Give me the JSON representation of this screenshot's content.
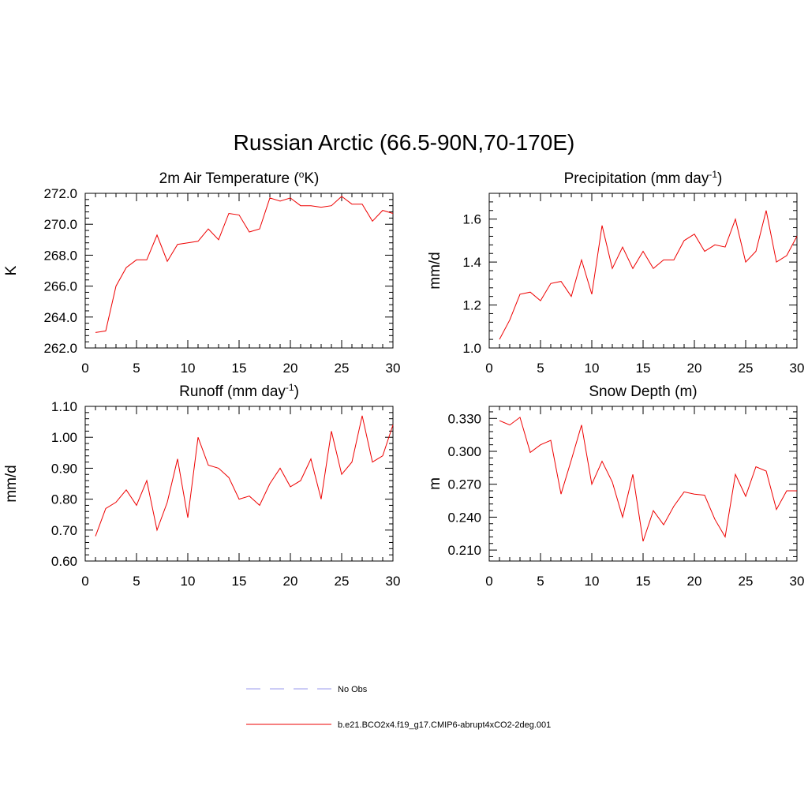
{
  "title": "Russian Arctic (66.5-90N,70-170E)",
  "legend": [
    {
      "label": "No Obs",
      "color": "#9999ee",
      "dash": true
    },
    {
      "label": "b.e21.BCO2x4.f19_g17.CMIP6-abrupt4xCO2-2deg.001",
      "color": "#ee0000",
      "dash": false
    }
  ],
  "chart_data": [
    {
      "type": "line",
      "title": "2m Air Temperature (oK)",
      "title_main": "2m Air Temperature (",
      "title_sup": "o",
      "title_end": "K)",
      "xlabel": "",
      "ylabel": "K",
      "xlim": [
        0,
        30
      ],
      "ylim": [
        262,
        272
      ],
      "xticks": [
        0,
        5,
        10,
        15,
        20,
        25,
        30
      ],
      "yticks": [
        262,
        264,
        266,
        268,
        270,
        272
      ],
      "yticklabels": [
        "262.0",
        "264.0",
        "266.0",
        "268.0",
        "270.0",
        "272.0"
      ],
      "series": [
        {
          "name": "b.e21.BCO2x4.f19_g17.CMIP6-abrupt4xCO2-2deg.001",
          "color": "#ee0000",
          "x": [
            1,
            2,
            3,
            4,
            5,
            6,
            7,
            8,
            9,
            10,
            11,
            12,
            13,
            14,
            15,
            16,
            17,
            18,
            19,
            20,
            21,
            22,
            23,
            24,
            25,
            26,
            27,
            28,
            29,
            30
          ],
          "values": [
            263.0,
            263.1,
            266.0,
            267.2,
            267.7,
            267.7,
            269.3,
            267.6,
            268.7,
            268.8,
            268.9,
            269.7,
            269.0,
            270.7,
            270.6,
            269.5,
            269.7,
            271.7,
            271.5,
            271.7,
            271.2,
            271.2,
            271.1,
            271.2,
            271.8,
            271.3,
            271.3,
            270.2,
            270.9,
            270.7
          ]
        }
      ]
    },
    {
      "type": "line",
      "title": "Precipitation (mm day-1)",
      "title_main": "Precipitation (mm day",
      "title_sup": "-1",
      "title_end": ")",
      "xlabel": "",
      "ylabel": "mm/d",
      "xlim": [
        0,
        30
      ],
      "ylim": [
        1.0,
        1.72
      ],
      "xticks": [
        0,
        5,
        10,
        15,
        20,
        25,
        30
      ],
      "yticks": [
        1.0,
        1.2,
        1.4,
        1.6
      ],
      "yticklabels": [
        "1.0",
        "1.2",
        "1.4",
        "1.6"
      ],
      "series": [
        {
          "name": "b.e21.BCO2x4.f19_g17.CMIP6-abrupt4xCO2-2deg.001",
          "color": "#ee0000",
          "x": [
            1,
            2,
            3,
            4,
            5,
            6,
            7,
            8,
            9,
            10,
            11,
            12,
            13,
            14,
            15,
            16,
            17,
            18,
            19,
            20,
            21,
            22,
            23,
            24,
            25,
            26,
            27,
            28,
            29,
            30
          ],
          "values": [
            1.04,
            1.13,
            1.25,
            1.26,
            1.22,
            1.3,
            1.31,
            1.24,
            1.41,
            1.25,
            1.57,
            1.37,
            1.47,
            1.37,
            1.45,
            1.37,
            1.41,
            1.41,
            1.5,
            1.53,
            1.45,
            1.48,
            1.47,
            1.6,
            1.4,
            1.45,
            1.64,
            1.4,
            1.43,
            1.52
          ]
        }
      ]
    },
    {
      "type": "line",
      "title": "Runoff (mm day-1)",
      "title_main": "Runoff (mm day",
      "title_sup": "-1",
      "title_end": ")",
      "xlabel": "",
      "ylabel": "mm/d",
      "xlim": [
        0,
        30
      ],
      "ylim": [
        0.6,
        1.1
      ],
      "xticks": [
        0,
        5,
        10,
        15,
        20,
        25,
        30
      ],
      "yticks": [
        0.6,
        0.7,
        0.8,
        0.9,
        1.0,
        1.1
      ],
      "yticklabels": [
        "0.60",
        "0.70",
        "0.80",
        "0.90",
        "1.00",
        "1.10"
      ],
      "series": [
        {
          "name": "b.e21.BCO2x4.f19_g17.CMIP6-abrupt4xCO2-2deg.001",
          "color": "#ee0000",
          "x": [
            1,
            2,
            3,
            4,
            5,
            6,
            7,
            8,
            9,
            10,
            11,
            12,
            13,
            14,
            15,
            16,
            17,
            18,
            19,
            20,
            21,
            22,
            23,
            24,
            25,
            26,
            27,
            28,
            29,
            30
          ],
          "values": [
            0.68,
            0.77,
            0.79,
            0.83,
            0.78,
            0.86,
            0.7,
            0.79,
            0.93,
            0.74,
            1.0,
            0.91,
            0.9,
            0.87,
            0.8,
            0.81,
            0.78,
            0.85,
            0.9,
            0.84,
            0.86,
            0.93,
            0.8,
            1.02,
            0.88,
            0.92,
            1.07,
            0.92,
            0.94,
            1.04
          ]
        }
      ]
    },
    {
      "type": "line",
      "title": "Snow Depth (m)",
      "title_main": "Snow Depth (m)",
      "title_sup": "",
      "title_end": "",
      "xlabel": "",
      "ylabel": "m",
      "xlim": [
        0,
        30
      ],
      "ylim": [
        0.2,
        0.341
      ],
      "xticks": [
        0,
        5,
        10,
        15,
        20,
        25,
        30
      ],
      "yticks": [
        0.21,
        0.24,
        0.27,
        0.3,
        0.33
      ],
      "yticklabels": [
        "0.210",
        "0.240",
        "0.270",
        "0.300",
        "0.330"
      ],
      "series": [
        {
          "name": "b.e21.BCO2x4.f19_g17.CMIP6-abrupt4xCO2-2deg.001",
          "color": "#ee0000",
          "x": [
            1,
            2,
            3,
            4,
            5,
            6,
            7,
            8,
            9,
            10,
            11,
            12,
            13,
            14,
            15,
            16,
            17,
            18,
            19,
            20,
            21,
            22,
            23,
            24,
            25,
            26,
            27,
            28,
            29,
            30
          ],
          "values": [
            0.328,
            0.324,
            0.331,
            0.299,
            0.306,
            0.31,
            0.261,
            0.292,
            0.324,
            0.27,
            0.291,
            0.272,
            0.24,
            0.279,
            0.218,
            0.246,
            0.233,
            0.25,
            0.263,
            0.261,
            0.26,
            0.238,
            0.222,
            0.279,
            0.259,
            0.286,
            0.282,
            0.247,
            0.264,
            0.264
          ]
        }
      ]
    }
  ]
}
